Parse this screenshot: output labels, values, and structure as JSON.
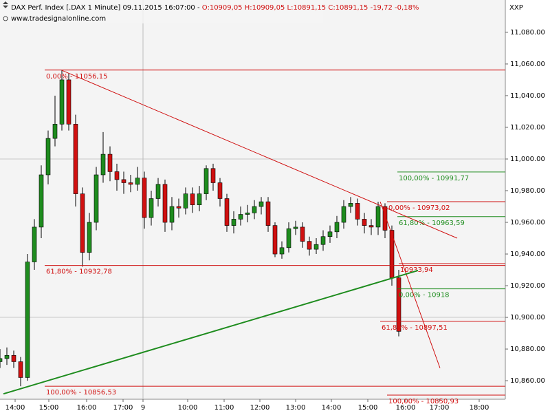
{
  "header": {
    "title": "DAX Perf. Index [.DAX  1 Minute] 09.11.2015 16:07:00 - ",
    "quote": "O:10909,05 H:10909,05 L:10891,15 C:10891,15 -19,72 -0,18%",
    "source": "www.tradesignalonline.com",
    "axis_code": "XXP"
  },
  "chart_data": {
    "type": "candlestick",
    "up_color": "#1e8c1e",
    "down_color": "#d01010",
    "x": [
      0,
      1,
      2,
      3,
      4,
      5,
      6,
      7,
      8,
      9,
      10,
      11,
      12,
      13,
      14,
      15,
      16,
      17,
      18,
      19,
      20,
      21,
      22,
      23,
      24,
      25,
      26,
      27,
      28,
      29,
      30,
      31,
      32,
      33,
      34,
      35,
      36,
      37,
      38,
      39,
      40,
      41,
      42,
      43,
      44,
      45,
      46,
      47,
      48,
      49,
      50,
      51,
      52,
      53,
      54,
      55,
      56,
      57,
      58
    ],
    "open": [
      10872,
      10874,
      10876,
      10872,
      10862,
      10935,
      10957,
      10990,
      11013,
      11022,
      11050,
      11022,
      10978,
      10941,
      10960,
      10990,
      11003,
      10992,
      10987,
      10985,
      10984,
      10988,
      10963,
      10975,
      10984,
      10960,
      10970,
      10969,
      10978,
      10971,
      10978,
      10994,
      10985,
      10975,
      10958,
      10962,
      10965,
      10966,
      10970,
      10973,
      10958,
      10940,
      10944,
      10956,
      10957,
      10948,
      10943,
      10946,
      10951,
      10954,
      10960,
      10970,
      10972,
      10962,
      10958,
      10957,
      10970,
      10955,
      10925
    ],
    "high": [
      10880,
      10881,
      10879,
      10875,
      10940,
      10962,
      10996,
      11018,
      11040,
      11056.15,
      11054,
      11028,
      10982,
      10966,
      10995,
      11017,
      11008,
      10997,
      10992,
      10990,
      10995,
      10992,
      10980,
      10988,
      10987,
      10976,
      10975,
      10982,
      10982,
      10983,
      10996,
      10997,
      10988,
      10978,
      10967,
      10970,
      10971,
      10974,
      10976,
      10976,
      10960,
      10948,
      10960,
      10961,
      10960,
      10951,
      10950,
      10955,
      10958,
      10964,
      10974,
      10976,
      10975,
      10966,
      10962,
      10973,
      10972,
      10958,
      10930
    ],
    "low": [
      10868,
      10870,
      10868,
      10856.53,
      10860,
      10930,
      10950,
      10984,
      11008,
      11018,
      11018,
      10970,
      10932,
      10936,
      10955,
      10985,
      10986,
      10980,
      10978,
      10979,
      10980,
      10956,
      10958,
      10970,
      10954,
      10955,
      10963,
      10965,
      10966,
      10967,
      10974,
      10980,
      10970,
      10954,
      10953,
      10958,
      10960,
      10962,
      10965,
      10954,
      10938,
      10937,
      10941,
      10952,
      10944,
      10939,
      10940,
      10942,
      10947,
      10950,
      10956,
      10966,
      10958,
      10953,
      10952,
      10952,
      10950,
      10920,
      10888
    ],
    "close": [
      10874,
      10876,
      10872,
      10862,
      10935,
      10957,
      10990,
      11013,
      11022,
      11050,
      11022,
      10978,
      10941,
      10960,
      10990,
      11003,
      10992,
      10987,
      10985,
      10984,
      10988,
      10963,
      10975,
      10984,
      10960,
      10970,
      10969,
      10978,
      10971,
      10978,
      10994,
      10985,
      10975,
      10958,
      10962,
      10965,
      10966,
      10970,
      10973,
      10958,
      10940,
      10944,
      10956,
      10957,
      10948,
      10943,
      10946,
      10951,
      10954,
      10960,
      10970,
      10972,
      10962,
      10958,
      10957,
      10970,
      10955,
      10925,
      10891.15
    ],
    "xlim": [
      0,
      73.5
    ],
    "xticks": [
      {
        "value": 2.2,
        "label": "14:00"
      },
      {
        "value": 7.1,
        "label": "15:00"
      },
      {
        "value": 12.6,
        "label": "16:00"
      },
      {
        "value": 17.9,
        "label": "17:00"
      },
      {
        "value": 20.8,
        "label": "9"
      },
      {
        "value": 27.3,
        "label": "10:00"
      },
      {
        "value": 32.6,
        "label": "11:00"
      },
      {
        "value": 37.8,
        "label": "12:00"
      },
      {
        "value": 43.0,
        "label": "13:00"
      },
      {
        "value": 48.2,
        "label": "14:00"
      },
      {
        "value": 53.5,
        "label": "15:00"
      },
      {
        "value": 59.0,
        "label": "16:00"
      },
      {
        "value": 63.9,
        "label": "17:00"
      },
      {
        "value": 69.7,
        "label": "18:00"
      }
    ],
    "ylim": [
      10848.3,
      11100.4
    ],
    "yticks": [
      {
        "value": 10860,
        "label": "10,860.00"
      },
      {
        "value": 10880,
        "label": "10,880.00"
      },
      {
        "value": 10900,
        "label": "10,900.00"
      },
      {
        "value": 10920,
        "label": "10,920.00"
      },
      {
        "value": 10940,
        "label": "10,940.00"
      },
      {
        "value": 10960,
        "label": "10,960.00"
      },
      {
        "value": 10980,
        "label": "10,980.00"
      },
      {
        "value": 11000,
        "label": "11,000.00"
      },
      {
        "value": 11020,
        "label": "11,020.00"
      },
      {
        "value": 11040,
        "label": "11,040.00"
      },
      {
        "value": 11060,
        "label": "11,060.00"
      },
      {
        "value": 11080,
        "label": "11,080.00"
      }
    ],
    "levels": [
      {
        "label": "0,00% - 11056,15",
        "value": 11056.15,
        "from": 6.5,
        "color": "#d01010"
      },
      {
        "label": "61,80% - 10932,78",
        "value": 10932.78,
        "from": 6.5,
        "color": "#d01010"
      },
      {
        "label": "100,00% - 10856,53",
        "value": 10856.53,
        "from": 6.5,
        "color": "#d01010"
      },
      {
        "label": "100,00% - 10991,77",
        "value": 10991.77,
        "from": 57.8,
        "color": "#1e8c1e"
      },
      {
        "label": "0,00% - 10973,02",
        "value": 10973.02,
        "from": 56.3,
        "color": "#d01010"
      },
      {
        "label": "61,80% - 10963,59",
        "value": 10963.59,
        "from": 57.8,
        "color": "#1e8c1e"
      },
      {
        "label": "10933,94",
        "value": 10933.94,
        "from": 58.0,
        "color": "#d01010"
      },
      {
        "label": "0,00% - 10918",
        "value": 10918,
        "from": 57.8,
        "color": "#1e8c1e"
      },
      {
        "label": "61,80% - 10897,51",
        "value": 10897.51,
        "from": 55.3,
        "color": "#d01010"
      },
      {
        "label": "100,00% - 10850,93",
        "value": 10850.93,
        "from": 56.3,
        "color": "#d01010"
      }
    ],
    "trendlines": [
      {
        "color": "#d01010",
        "x": [
          9,
          66.5
        ],
        "y": [
          11056,
          10950
        ]
      },
      {
        "color": "#d01010",
        "x": [
          55.3,
          64
        ],
        "y": [
          10973,
          10868
        ]
      },
      {
        "color": "#1e8c1e",
        "x": [
          0.5,
          60.8
        ],
        "y": [
          10851.7,
          10929.6
        ]
      }
    ]
  }
}
